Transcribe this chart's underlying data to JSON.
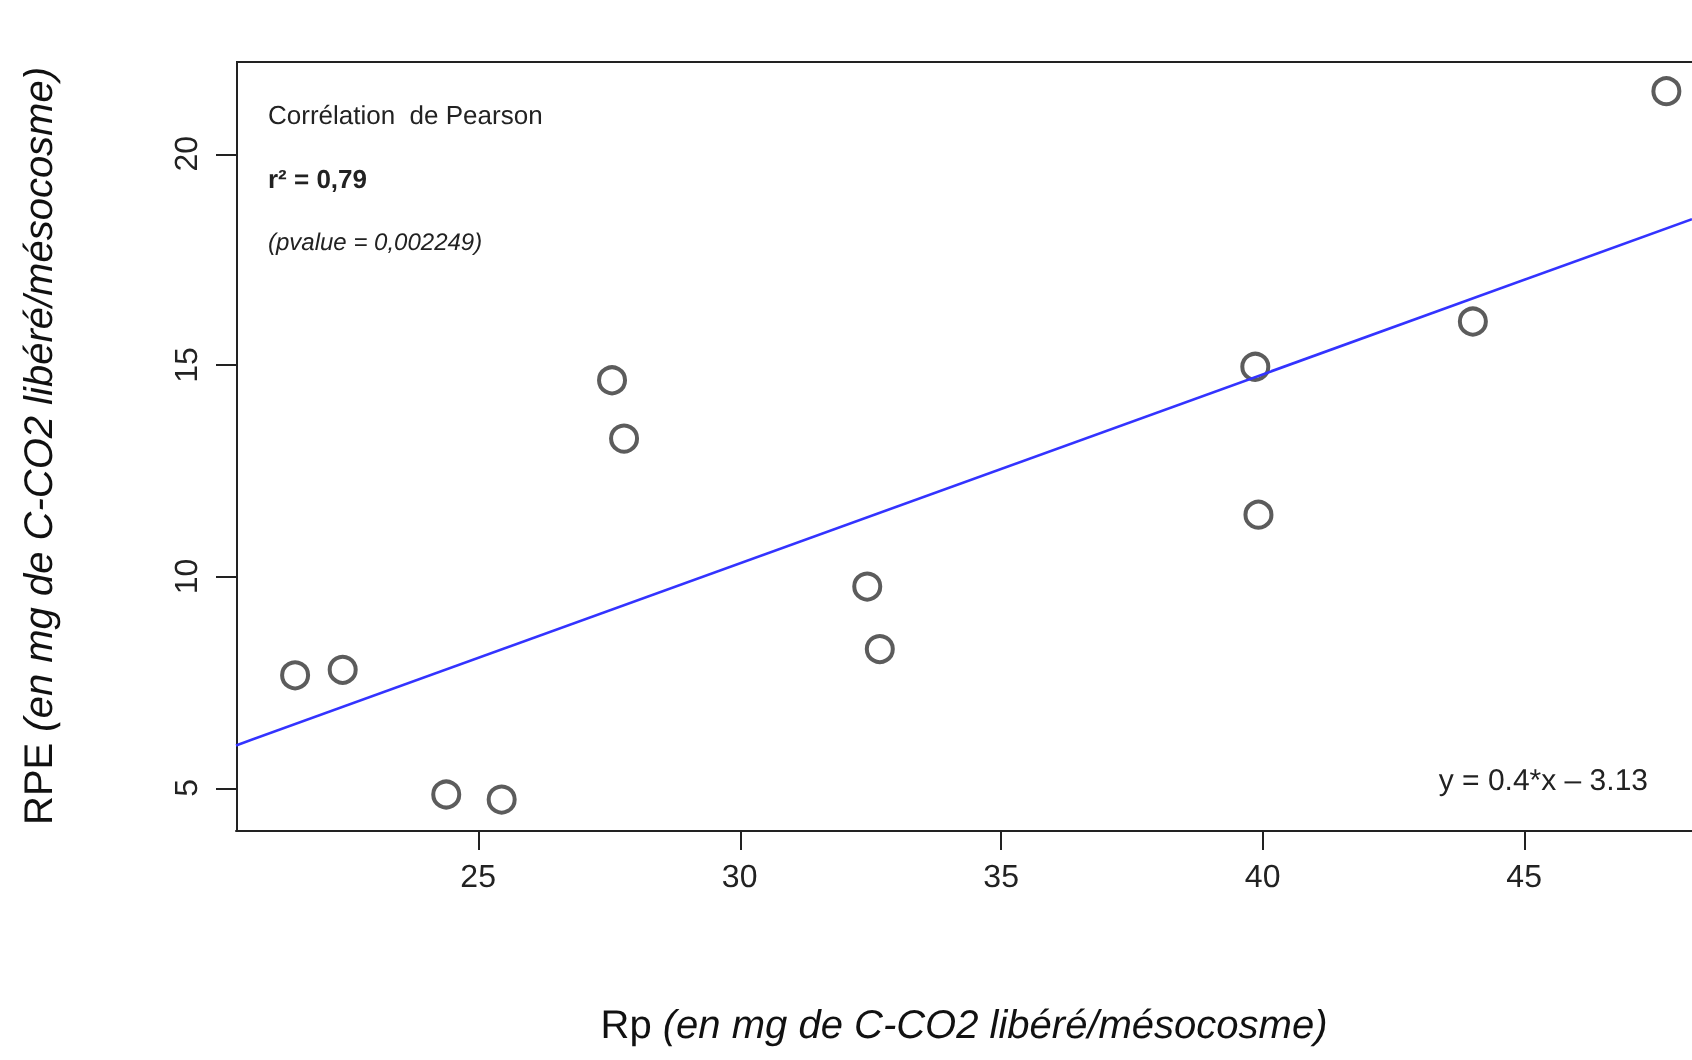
{
  "chart_data": {
    "type": "scatter",
    "xlabel": "Rp (en mg de C-CO2 libéré/mésocosme)",
    "ylabel": "RPE (en mg de C-CO2 libéré/mésocosme)",
    "annotations": [
      "Corrélation  de Pearson",
      "r² = 0,79",
      "(pvalue = 0,002249)",
      "y = 0.4*x – 3.13"
    ],
    "xlim": [
      20.37,
      48.21
    ],
    "xticks": [
      25,
      30,
      35,
      40,
      45
    ],
    "ylim": [
      4.0,
      22.17
    ],
    "yticks": [
      5,
      10,
      15,
      20
    ],
    "grid": false,
    "series": [
      {
        "marker": "circle",
        "color": "#333333",
        "x": [
          21.5,
          22.41,
          24.39,
          25.45,
          27.56,
          27.79,
          32.44,
          32.68,
          39.86,
          39.92,
          44.02,
          47.72
        ],
        "values": [
          7.66,
          7.79,
          4.84,
          4.72,
          14.64,
          13.26,
          9.76,
          8.28,
          14.96,
          11.46,
          16.03,
          21.48
        ]
      },
      {
        "type": "line",
        "color": "#3333ff",
        "x": [
          20.37,
          48.21
        ],
        "values": [
          6.0,
          18.45
        ]
      }
    ]
  }
}
